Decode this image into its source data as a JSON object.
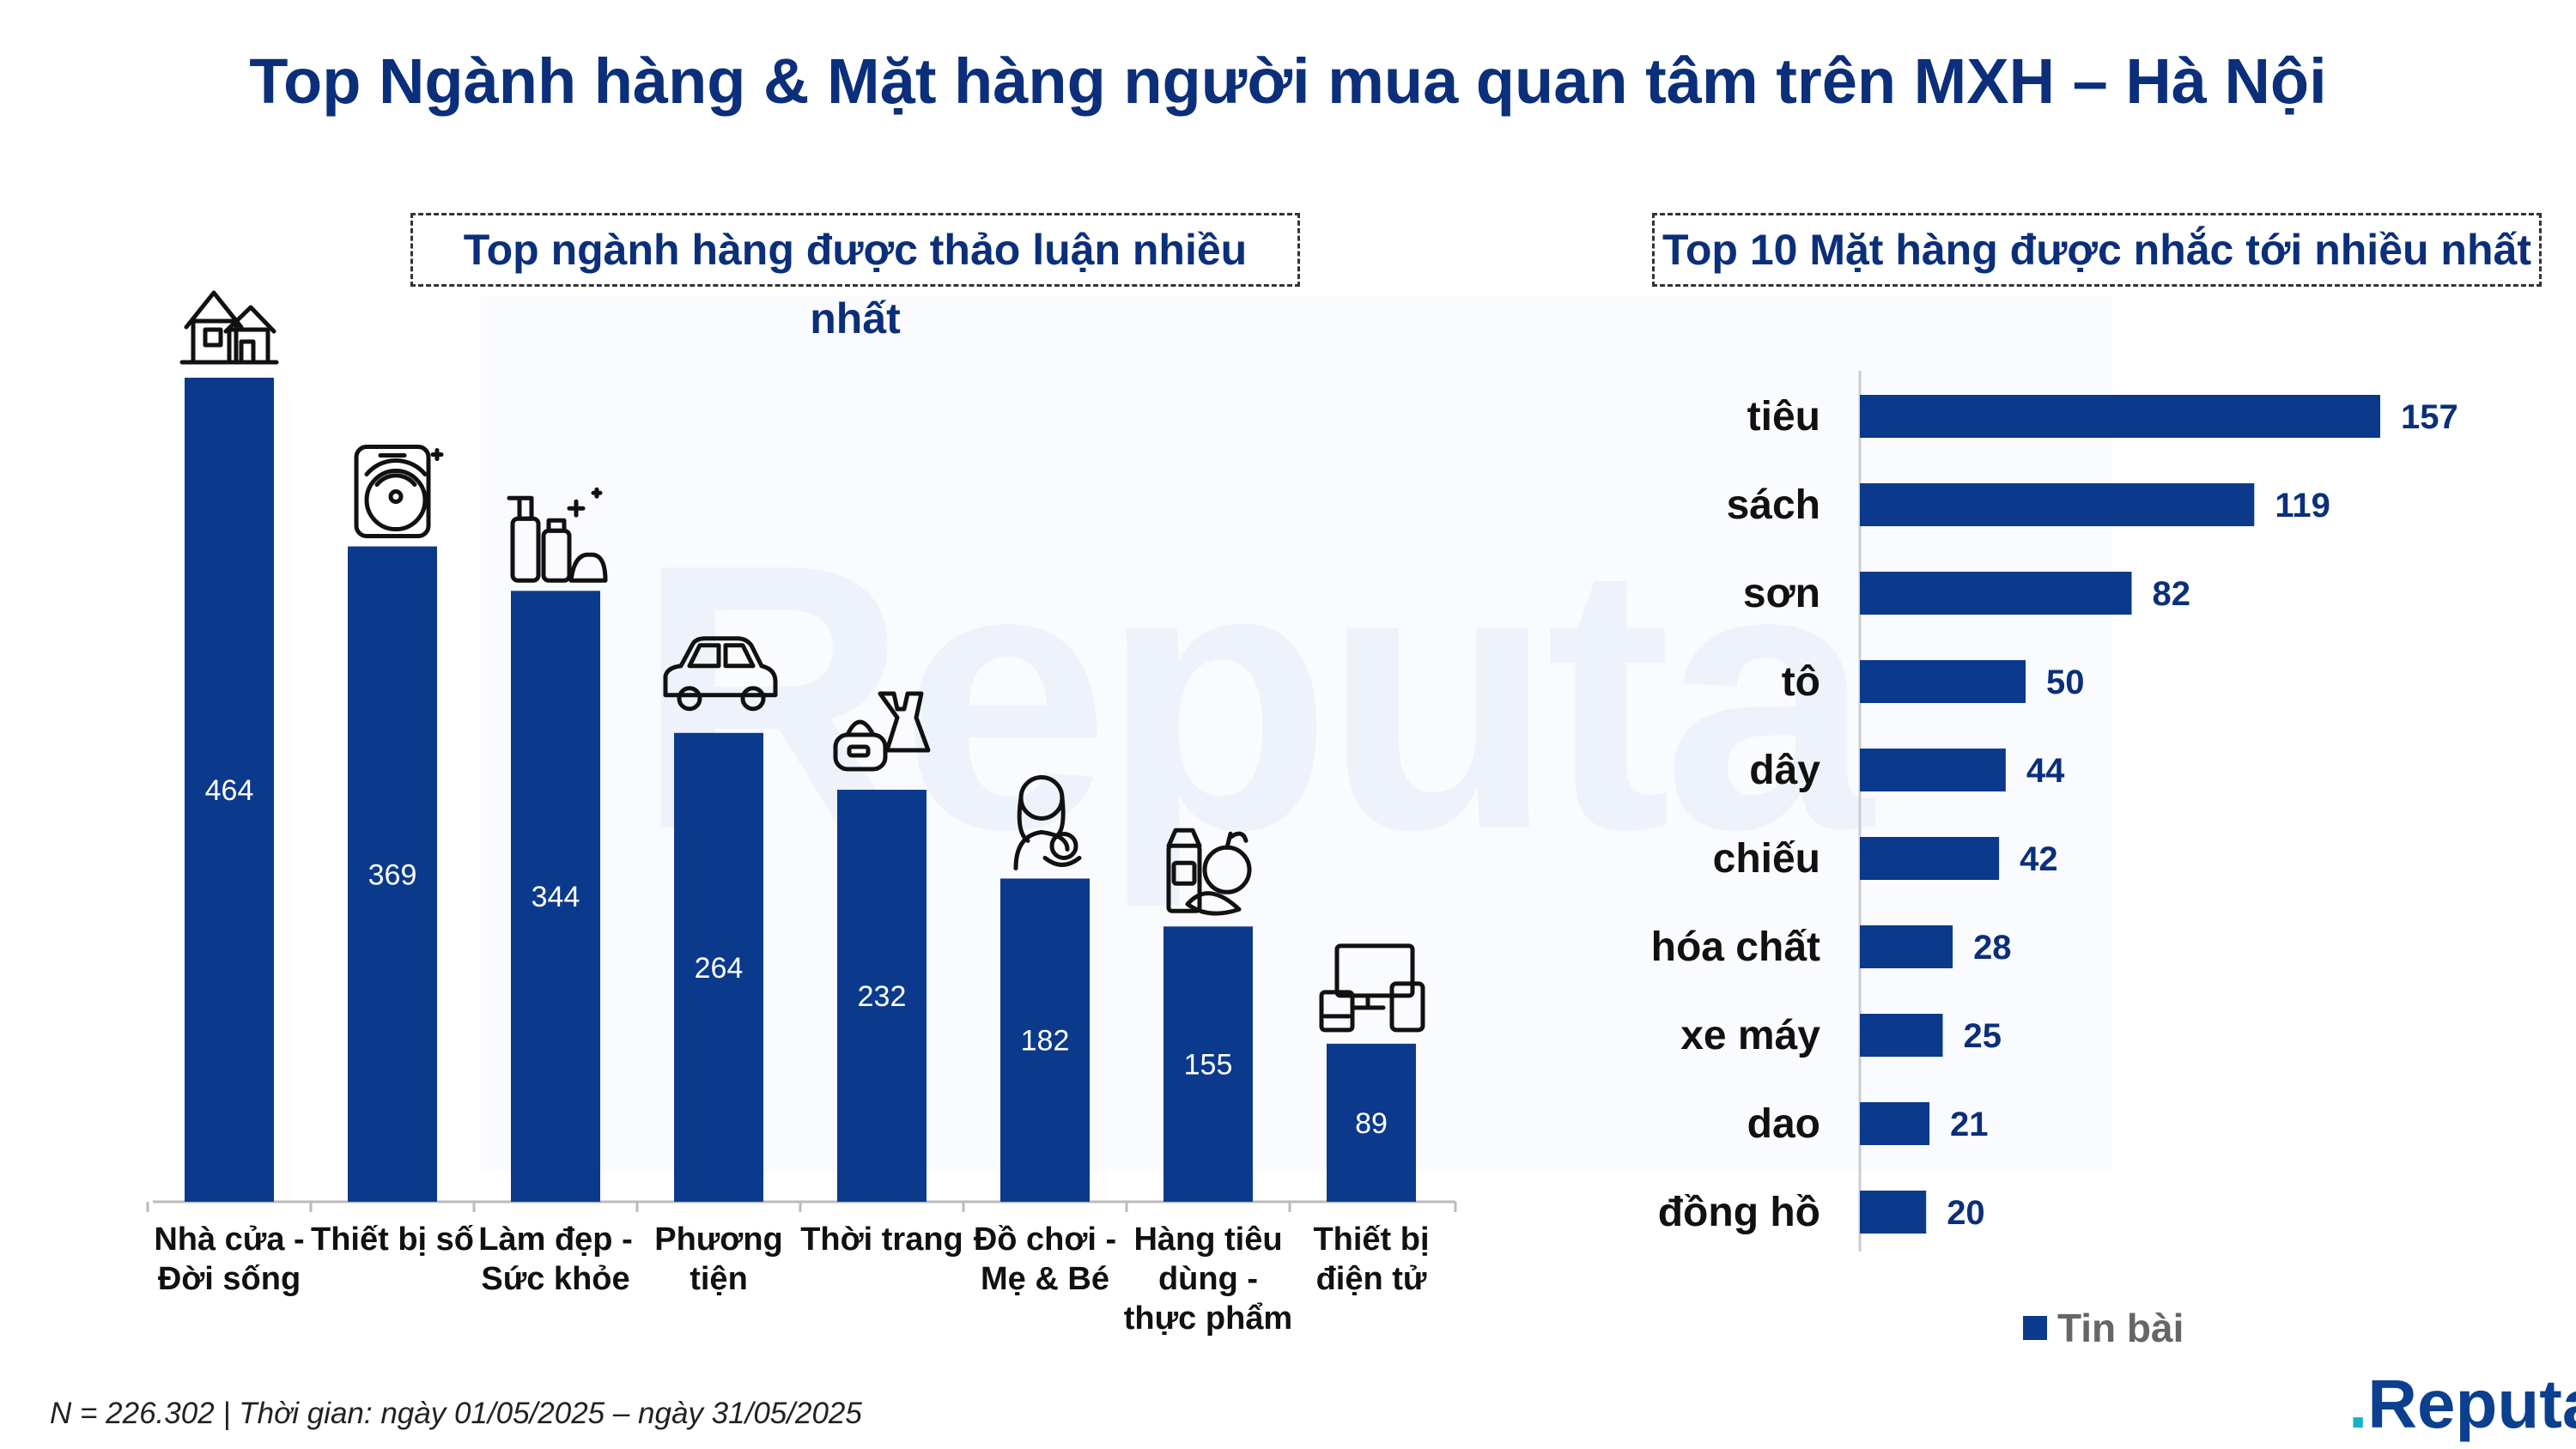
{
  "title": "Top Ngành hàng & Mặt hàng người mua quan tâm trên MXH – Hà Nội",
  "watermark": "Reputa",
  "left_panel": {
    "title": "Top ngành hàng được thảo luận nhiều nhất"
  },
  "right_panel": {
    "title": "Top 10 Mặt hàng được nhắc tới nhiều nhất"
  },
  "footnote": "N = 226.302 | Thời gian: ngày 01/05/2025 – ngày 31/05/2025",
  "logo": {
    "text": "Reputa"
  },
  "colors": {
    "bar": "#0b3a8c",
    "text": "#0b2f7a"
  },
  "chart_data": [
    {
      "type": "bar",
      "orientation": "vertical",
      "title": "Top ngành hàng được thảo luận nhiều nhất",
      "categories": [
        [
          "Nhà cửa -",
          "Đời sống"
        ],
        [
          "Thiết bị số"
        ],
        [
          "Làm đẹp -",
          "Sức khỏe"
        ],
        [
          "Phương",
          "tiện"
        ],
        [
          "Thời trang"
        ],
        [
          "Đồ chơi -",
          "Mẹ & Bé"
        ],
        [
          "Hàng tiêu",
          "dùng -",
          "thực phẩm"
        ],
        [
          "Thiết bị",
          "điện tử"
        ]
      ],
      "icons": [
        "house-icon",
        "smartphone-wifi-icon",
        "cosmetics-icon",
        "car-icon",
        "fashion-icon",
        "mother-baby-icon",
        "groceries-icon",
        "electronics-icon"
      ],
      "values": [
        464,
        369,
        344,
        264,
        232,
        182,
        155,
        89
      ],
      "ylim": [
        0,
        464
      ]
    },
    {
      "type": "bar",
      "orientation": "horizontal",
      "title": "Top 10 Mặt hàng được nhắc tới nhiều nhất",
      "categories": [
        "tiêu",
        "sách",
        "sơn",
        "tô",
        "dây",
        "chiếu",
        "hóa chất",
        "xe máy",
        "dao",
        "đồng hồ"
      ],
      "values": [
        157,
        119,
        82,
        50,
        44,
        42,
        28,
        25,
        21,
        20
      ],
      "series": [
        {
          "name": "Tin bài",
          "values": [
            157,
            119,
            82,
            50,
            44,
            42,
            28,
            25,
            21,
            20
          ]
        }
      ],
      "legend": "bottom",
      "xlim": [
        0,
        157
      ]
    }
  ]
}
